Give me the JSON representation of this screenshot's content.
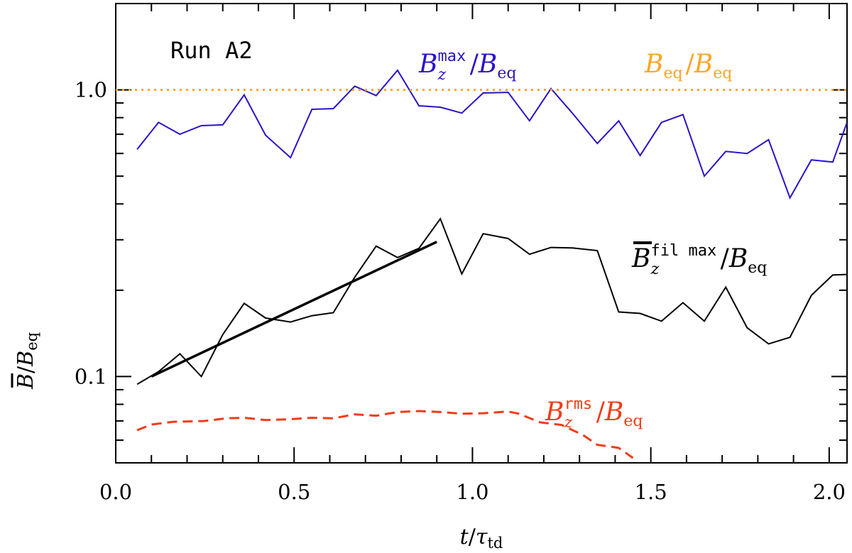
{
  "chart_data": {
    "type": "line",
    "title": "",
    "annotation": "Run A2",
    "xlabel": "t/τ",
    "xlabel_parts": {
      "main": "t",
      "denominator": "τ",
      "sub": "td"
    },
    "ylabel": "B/B",
    "ylabel_parts": {
      "main": "B",
      "denominator": "B",
      "sub": "eq"
    },
    "xlim": [
      0.0,
      2.05
    ],
    "ylim": [
      0.05,
      2.0
    ],
    "yscale": "log",
    "xticks": [
      {
        "value": 0.0,
        "label": "0.0"
      },
      {
        "value": 0.5,
        "label": "0.5"
      },
      {
        "value": 1.0,
        "label": "1.0"
      },
      {
        "value": 1.5,
        "label": "1.5"
      },
      {
        "value": 2.0,
        "label": "2.0"
      }
    ],
    "yticks": [
      {
        "value": 0.1,
        "label": "0.1"
      },
      {
        "value": 1.0,
        "label": "1.0"
      }
    ],
    "series": [
      {
        "name": "Bz max / Beq",
        "label_main": "B",
        "label_sub": "z",
        "label_sup": "max",
        "label_den": "B",
        "label_den_sub": "eq",
        "color": "#2a14c8",
        "style": "solid",
        "x": [
          0.06,
          0.12,
          0.18,
          0.24,
          0.3,
          0.36,
          0.42,
          0.49,
          0.55,
          0.61,
          0.67,
          0.73,
          0.79,
          0.85,
          0.91,
          0.97,
          1.03,
          1.1,
          1.16,
          1.22,
          1.28,
          1.35,
          1.41,
          1.47,
          1.53,
          1.59,
          1.65,
          1.71,
          1.77,
          1.83,
          1.89,
          1.95,
          2.01,
          2.05
        ],
        "y": [
          0.62,
          0.77,
          0.7,
          0.75,
          0.755,
          0.96,
          0.695,
          0.58,
          0.855,
          0.86,
          1.03,
          0.955,
          1.17,
          0.88,
          0.87,
          0.83,
          0.975,
          0.98,
          0.78,
          1.01,
          0.83,
          0.65,
          0.78,
          0.59,
          0.77,
          0.82,
          0.5,
          0.61,
          0.6,
          0.67,
          0.42,
          0.57,
          0.56,
          0.77
        ]
      },
      {
        "name": "Bz fil max / Beq",
        "label_main": "B",
        "label_sub": "z",
        "label_sup": "fil max",
        "label_den": "B",
        "label_den_sub": "eq",
        "color": "#000000",
        "style": "solid",
        "x": [
          0.06,
          0.12,
          0.18,
          0.24,
          0.3,
          0.36,
          0.42,
          0.49,
          0.55,
          0.61,
          0.67,
          0.73,
          0.79,
          0.85,
          0.91,
          0.97,
          1.03,
          1.1,
          1.16,
          1.22,
          1.28,
          1.35,
          1.41,
          1.47,
          1.53,
          1.59,
          1.65,
          1.71,
          1.77,
          1.83,
          1.89,
          1.95,
          2.01,
          2.05
        ],
        "y": [
          0.094,
          0.104,
          0.12,
          0.1,
          0.14,
          0.18,
          0.16,
          0.155,
          0.163,
          0.167,
          0.222,
          0.285,
          0.26,
          0.28,
          0.355,
          0.228,
          0.315,
          0.303,
          0.267,
          0.282,
          0.281,
          0.275,
          0.168,
          0.166,
          0.156,
          0.181,
          0.156,
          0.205,
          0.148,
          0.13,
          0.137,
          0.192,
          0.226,
          0.227
        ]
      },
      {
        "name": "fit",
        "color": "#000000",
        "style": "thick",
        "x": [
          0.1,
          0.9
        ],
        "y": [
          0.1,
          0.295
        ]
      },
      {
        "name": "Bz rms / Beq",
        "label_main": "B",
        "label_sub": "z",
        "label_sup": "rms",
        "label_den": "B",
        "label_den_sub": "eq",
        "color": "#f03c18",
        "style": "dashed",
        "x": [
          0.06,
          0.1,
          0.16,
          0.25,
          0.31,
          0.36,
          0.42,
          0.49,
          0.55,
          0.61,
          0.67,
          0.73,
          0.79,
          0.85,
          0.91,
          0.97,
          1.03,
          1.1,
          1.13,
          1.19,
          1.25,
          1.31,
          1.35,
          1.41,
          1.45
        ],
        "y": [
          0.065,
          0.068,
          0.0695,
          0.07,
          0.0715,
          0.0718,
          0.0705,
          0.071,
          0.0718,
          0.0715,
          0.0738,
          0.073,
          0.0752,
          0.0758,
          0.0752,
          0.0742,
          0.0745,
          0.0755,
          0.0742,
          0.0692,
          0.0678,
          0.0625,
          0.0578,
          0.0564,
          0.052
        ]
      },
      {
        "name": "Beq / Beq",
        "label_main": "B",
        "label_main_sub": "eq",
        "label_den": "B",
        "label_den_sub": "eq",
        "color": "#ffa524",
        "style": "dotted",
        "x": [
          0.0,
          2.05
        ],
        "y": [
          1.0,
          1.0
        ]
      }
    ]
  }
}
